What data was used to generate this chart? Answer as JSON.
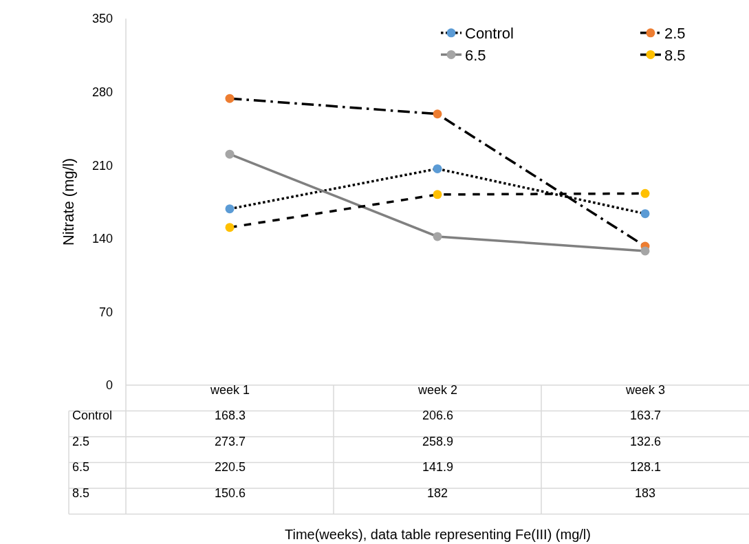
{
  "chart_data": {
    "type": "line",
    "annotations": [
      "Time(weeks), data table representing Fe(III) (mg/l)"
    ],
    "ylabel": "Nitrate (mg/l)",
    "categories": [
      "week 1",
      "week 2",
      "week 3"
    ],
    "series": [
      {
        "name": "Control",
        "color": "#000000",
        "colors": [
          "#5b9bd5",
          "#5b9bd5",
          "#5b9bd5"
        ],
        "line_style": "dotted",
        "values": [
          168.3,
          206.6,
          163.7
        ]
      },
      {
        "name": "2.5",
        "color": "#000000",
        "colors": [
          "#ed7d31",
          "#ed7d31",
          "#ed7d31"
        ],
        "line_style": "longdashdot",
        "values": [
          273.7,
          258.9,
          132.6
        ]
      },
      {
        "name": "6.5",
        "color": "#808080",
        "colors": [
          "#a5a5a5",
          "#a5a5a5",
          "#a5a5a5"
        ],
        "line_style": "solid",
        "values": [
          220.5,
          141.9,
          128.1
        ]
      },
      {
        "name": "8.5",
        "color": "#000000",
        "colors": [
          "#ffc000",
          "#ffc000",
          "#ffc000"
        ],
        "line_style": "dashed",
        "values": [
          150.6,
          182,
          183
        ]
      }
    ],
    "ylim": [
      0,
      350
    ],
    "yticks": [
      0,
      70,
      140,
      210,
      280,
      350
    ],
    "marker": "circle",
    "legend": "top right",
    "data_labels": true
  }
}
